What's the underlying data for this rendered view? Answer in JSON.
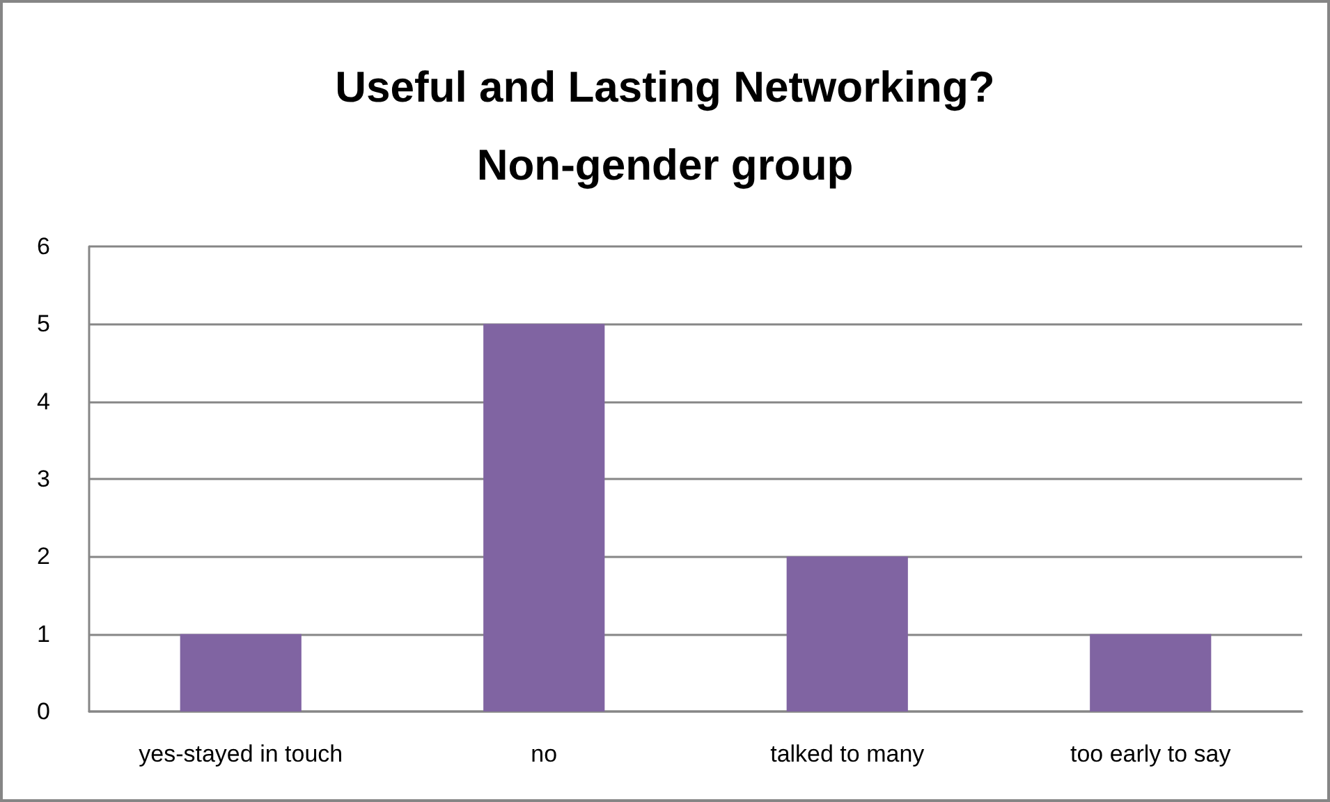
{
  "chart_data": {
    "type": "bar",
    "title": "Useful and Lasting Networking?",
    "subtitle": "Non-gender group",
    "categories": [
      "yes-stayed in touch",
      "no",
      "talked to many",
      "too early to say"
    ],
    "values": [
      1,
      5,
      2,
      1
    ],
    "color": "#8064a2",
    "ylim": [
      0,
      6
    ],
    "yticks": [
      0,
      1,
      2,
      3,
      4,
      5,
      6
    ],
    "grid": "y"
  }
}
